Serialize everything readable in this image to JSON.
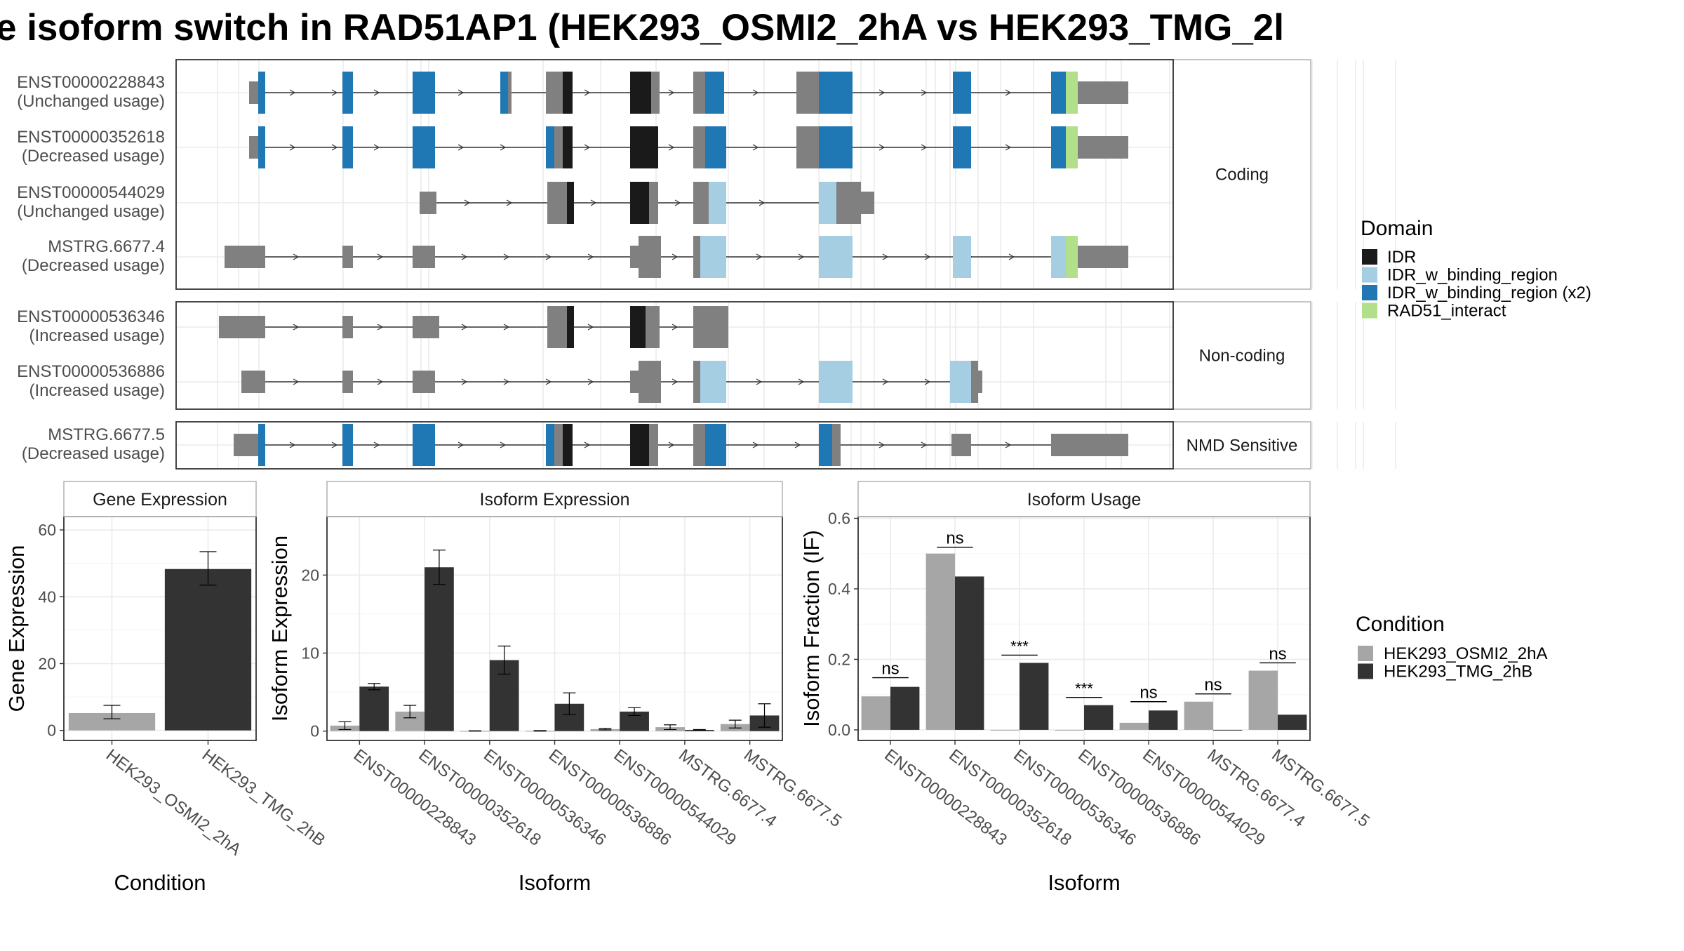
{
  "title": "e isoform switch in RAD51AP1 (HEK293_OSMI2_2hA vs HEK293_TMG_2l",
  "colors": {
    "IDR": "#1a1a1a",
    "IDR_w_binding_region": "#a6cee3",
    "IDR_w_binding_region (x2)": "#1f78b4",
    "RAD51_interact": "#b2df8a",
    "exon": "#808080",
    "cond_a": "#a6a6a6",
    "cond_b": "#333333",
    "panel_border": "#333333",
    "strip_border": "#b0b0b0",
    "grid_major": "#ebebeb",
    "grid_minor": "#f5f5f5",
    "axis_text": "#4d4d4d"
  },
  "transcripts": {
    "facets": [
      "Coding",
      "Non-coding",
      "NMD Sensitive"
    ],
    "rows": [
      {
        "id": "ENST00000228843",
        "usage": "(Unchanged usage)",
        "facet": "Coding"
      },
      {
        "id": "ENST00000352618",
        "usage": "(Decreased usage)",
        "facet": "Coding"
      },
      {
        "id": "ENST00000544029",
        "usage": "(Unchanged usage)",
        "facet": "Coding"
      },
      {
        "id": "MSTRG.6677.4",
        "usage": "(Decreased usage)",
        "facet": "Coding"
      },
      {
        "id": "ENST00000536346",
        "usage": "(Increased usage)",
        "facet": "Non-coding"
      },
      {
        "id": "ENST00000536886",
        "usage": "(Increased usage)",
        "facet": "Non-coding"
      },
      {
        "id": "MSTRG.6677.5",
        "usage": "(Decreased usage)",
        "facet": "NMD Sensitive"
      }
    ]
  },
  "legend_domain": {
    "title": "Domain",
    "items": [
      "IDR",
      "IDR_w_binding_region",
      "IDR_w_binding_region (x2)",
      "RAD51_interact"
    ]
  },
  "legend_condition": {
    "title": "Condition",
    "items": [
      "HEK293_OSMI2_2hA",
      "HEK293_TMG_2hB"
    ]
  },
  "chart_data": [
    {
      "type": "bar",
      "title": "Gene Expression",
      "xlabel": "Condition",
      "ylabel": "Gene Expression",
      "categories": [
        "HEK293_OSMI2_2hA",
        "HEK293_TMG_2hB"
      ],
      "values": [
        5.2,
        48.3
      ],
      "error": [
        [
          3.5,
          7.5
        ],
        [
          43.5,
          53.5
        ]
      ],
      "ylim": [
        -3,
        64
      ],
      "yticks": [
        0,
        20,
        40,
        60
      ],
      "grid": true
    },
    {
      "type": "bar",
      "title": "Isoform Expression",
      "xlabel": "Isoform",
      "ylabel": "Isoform Expression",
      "categories": [
        "ENST00000228843",
        "ENST00000352618",
        "ENST00000536346",
        "ENST00000536886",
        "ENST00000544029",
        "MSTRG.6677.4",
        "MSTRG.6677.5"
      ],
      "series": [
        {
          "name": "HEK293_OSMI2_2hA",
          "values": [
            0.7,
            2.5,
            0.02,
            0.03,
            0.25,
            0.5,
            0.9
          ],
          "error": [
            [
              0.2,
              1.2
            ],
            [
              1.7,
              3.3
            ],
            [
              0,
              0.04
            ],
            [
              0,
              0.06
            ],
            [
              0.15,
              0.35
            ],
            [
              0.2,
              0.8
            ],
            [
              0.4,
              1.4
            ]
          ]
        },
        {
          "name": "HEK293_TMG_2hB",
          "values": [
            5.7,
            21.0,
            9.1,
            3.5,
            2.5,
            0.15,
            2.0
          ],
          "error": [
            [
              5.3,
              6.1
            ],
            [
              18.8,
              23.2
            ],
            [
              7.3,
              10.9
            ],
            [
              2.1,
              4.9
            ],
            [
              2.0,
              3.0
            ],
            [
              0.1,
              0.2
            ],
            [
              0.5,
              3.5
            ]
          ]
        }
      ],
      "ylim": [
        -1.2,
        27.5
      ],
      "yticks": [
        0,
        10,
        20
      ],
      "grid": true
    },
    {
      "type": "bar",
      "title": "Isoform Usage",
      "xlabel": "Isoform",
      "ylabel": "Isoform Fraction (IF)",
      "categories": [
        "ENST00000228843",
        "ENST00000352618",
        "ENST00000536346",
        "ENST00000536886",
        "ENST00000544029",
        "MSTRG.6677.4",
        "MSTRG.6677.5"
      ],
      "series": [
        {
          "name": "HEK293_OSMI2_2hA",
          "values": [
            0.095,
            0.5,
            0.0,
            0.0,
            0.02,
            0.08,
            0.168
          ]
        },
        {
          "name": "HEK293_TMG_2hB",
          "values": [
            0.122,
            0.435,
            0.19,
            0.07,
            0.055,
            0.0,
            0.043
          ]
        }
      ],
      "significance": [
        "ns",
        "ns",
        "***",
        "***",
        "ns",
        "ns",
        "ns"
      ],
      "sig_y": [
        0.148,
        0.518,
        0.212,
        0.092,
        0.08,
        0.102,
        0.19
      ],
      "ylim": [
        -0.03,
        0.605
      ],
      "yticks": [
        0.0,
        0.2,
        0.4,
        0.6
      ],
      "ytick_labels": [
        "0.0",
        "0.2",
        "0.4",
        "0.6"
      ],
      "grid": true
    }
  ]
}
